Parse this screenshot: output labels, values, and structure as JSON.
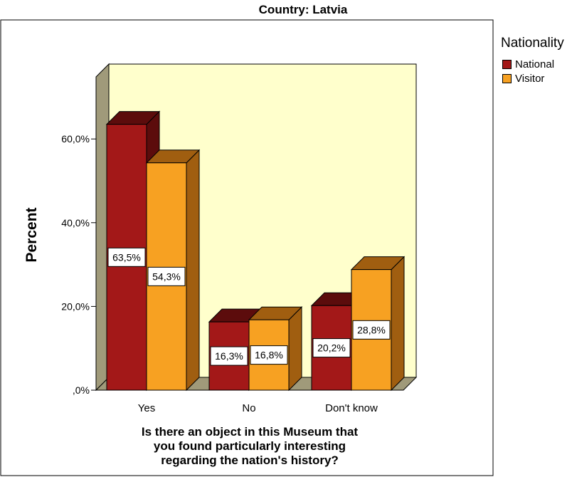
{
  "chart_data": {
    "type": "bar",
    "title": "Country: Latvia",
    "xlabel": "Is there an object in this Museum that you found particularly interesting regarding the nation's history?",
    "xlabel_lines": [
      "Is there an object in this Museum that",
      "you found particularly interesting",
      "regarding the nation's history?"
    ],
    "ylabel": "Percent",
    "categories": [
      "Yes",
      "No",
      "Don't know"
    ],
    "series": [
      {
        "name": "National",
        "values": [
          63.5,
          16.3,
          20.2
        ],
        "labels": [
          "63,5%",
          "16,3%",
          "20,2%"
        ]
      },
      {
        "name": "Visitor",
        "values": [
          54.3,
          16.8,
          28.8
        ],
        "labels": [
          "54,3%",
          "16,8%",
          "28,8%"
        ]
      }
    ],
    "yticks": [
      {
        "value": 0,
        "label": ",0%"
      },
      {
        "value": 20,
        "label": "20,0%"
      },
      {
        "value": 40,
        "label": "40,0%"
      },
      {
        "value": 60,
        "label": "60,0%"
      }
    ],
    "ylim": [
      0,
      70
    ],
    "legend_title": "Nationality",
    "legend_position": "top-right",
    "grid": false,
    "colors": {
      "National": "#a31818",
      "National_side": "#5c0c0c",
      "Visitor": "#f7a122",
      "Visitor_side": "#a05e10",
      "back_wall": "#ffffcc",
      "side_wall": "#a09a7a"
    }
  }
}
